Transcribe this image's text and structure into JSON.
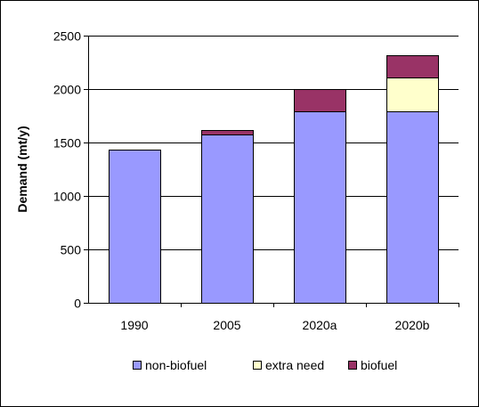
{
  "chart_data": {
    "type": "bar",
    "stacked": true,
    "categories": [
      "1990",
      "2005",
      "2020a",
      "2020b"
    ],
    "series": [
      {
        "name": "non-biofuel",
        "values": [
          1430,
          1575,
          1795,
          1795
        ],
        "color": "#9999ff"
      },
      {
        "name": "extra need",
        "values": [
          0,
          0,
          0,
          315
        ],
        "color": "#ffffcc"
      },
      {
        "name": "biofuel",
        "values": [
          0,
          40,
          205,
          205
        ],
        "color": "#993366"
      }
    ],
    "title": "",
    "xlabel": "",
    "ylabel": "Demand (mt/y)",
    "ylim": [
      0,
      2500
    ],
    "yticks": [
      0,
      500,
      1000,
      1500,
      2000,
      2500
    ],
    "grid": true,
    "legend_position": "bottom"
  }
}
